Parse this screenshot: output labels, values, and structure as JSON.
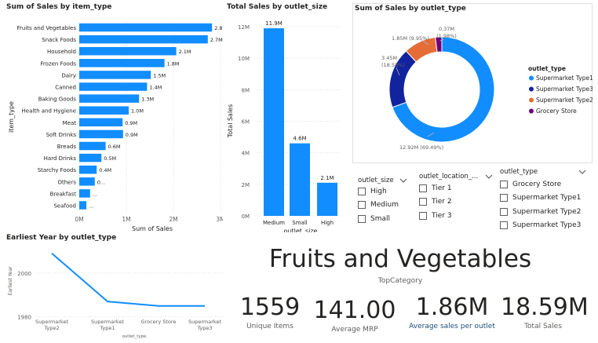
{
  "colors": {
    "bar": "#118dff",
    "type1": "#118dff",
    "type3": "#12239e",
    "type2": "#e66c37",
    "grocery": "#6b007b",
    "axis_text": "#605e5c",
    "grid": "#e1dfdd"
  },
  "item_chart": {
    "title": "Sum of Sales by item_type",
    "ylabel": "item_type",
    "xlabel": "Sum of Sales",
    "x_ticks": [
      "0M",
      "1M",
      "2M",
      "3M"
    ]
  },
  "outlet_size_chart": {
    "title": "Total Sales by outlet_size",
    "ylabel": "Total Sales",
    "xlabel": "outlet_size",
    "y_ticks": [
      "0M",
      "2M",
      "4M",
      "6M",
      "8M",
      "10M",
      "12M"
    ]
  },
  "donut_chart": {
    "title": "Sum of Sales by outlet_type",
    "legend_title": "outlet_type",
    "legend": [
      "Supermarket Type1",
      "Supermarket Type3",
      "Supermarket Type2",
      "Grocery Store"
    ]
  },
  "year_chart": {
    "title": "Earliest Year by outlet_type",
    "ylabel": "Earliest Year",
    "xlabel": "outlet_type",
    "y_ticks": [
      "1980",
      "2000"
    ]
  },
  "slicers": {
    "outlet_size": {
      "title": "outlet_size",
      "items": [
        "High",
        "Medium",
        "Small"
      ]
    },
    "outlet_location": {
      "title": "outlet_location_...",
      "items": [
        "Tier 1",
        "Tier 2",
        "Tier 3"
      ]
    },
    "outlet_type": {
      "title": "outlet_type",
      "items": [
        "Grocery Store",
        "Supermarket Type1",
        "Supermarket Type2",
        "Supermarket Type3"
      ]
    }
  },
  "top_category": {
    "value": "Fruits and Vegetables",
    "label": "TopCategory"
  },
  "cards": {
    "unique_items": {
      "value": "1559",
      "label": "Unique Items"
    },
    "average_mrp": {
      "value": "141.00",
      "label": "Average MRP"
    },
    "avg_sales_per_outlet": {
      "value": "1.86M",
      "label": "Average sales per outlet"
    },
    "total_sales": {
      "value": "18.59M",
      "label": "Total Sales"
    }
  },
  "chart_data": [
    {
      "type": "bar",
      "title": "Sum of Sales by item_type",
      "xlabel": "Sum of Sales",
      "ylabel": "item_type",
      "xlim": [
        0,
        3
      ],
      "categories": [
        "Fruits and Vegetables",
        "Snack Foods",
        "Household",
        "Frozen Foods",
        "Dairy",
        "Canned",
        "Baking Goods",
        "Health and Hygiene",
        "Meat",
        "Soft Drinks",
        "Breads",
        "Hard Drinks",
        "Starchy Foods",
        "Others",
        "Breakfast",
        "Seafood"
      ],
      "values": [
        2.82,
        2.73,
        2.06,
        1.81,
        1.52,
        1.44,
        1.27,
        1.05,
        0.92,
        0.93,
        0.56,
        0.47,
        0.37,
        0.33,
        0.23,
        0.15
      ],
      "labels": [
        "2.8M",
        "2.7M",
        "2.1M",
        "1.8M",
        "1.5M",
        "1.4M",
        "1.3M",
        "1.0M",
        "0.9M",
        "0.9M",
        "0.6M",
        "0.5M",
        "0.4M",
        "0...",
        "...",
        "..."
      ]
    },
    {
      "type": "bar",
      "title": "Total Sales by outlet_size",
      "xlabel": "outlet_size",
      "ylabel": "Total Sales",
      "ylim": [
        0,
        12
      ],
      "categories": [
        "Medium",
        "Small",
        "High"
      ],
      "values": [
        11.9,
        4.6,
        2.1
      ],
      "labels": [
        "11.9M",
        "4.6M",
        "2.1M"
      ]
    },
    {
      "type": "pie",
      "title": "Sum of Sales by outlet_type",
      "categories": [
        "Supermarket Type1",
        "Supermarket Type3",
        "Supermarket Type2",
        "Grocery Store"
      ],
      "values": [
        69.49,
        18.58,
        9.95,
        1.98
      ],
      "labels": [
        "12.92M (69.49%)",
        "3.45M (18.58%)",
        "1.85M (9.95%)",
        "0.37M (1.98%)"
      ]
    },
    {
      "type": "line",
      "title": "Earliest Year by outlet_type",
      "xlabel": "outlet_type",
      "ylabel": "Earliest Year",
      "ylim": [
        1977,
        2010
      ],
      "categories": [
        "Supermarket Type2",
        "Supermarket Type1",
        "Grocery Store",
        "Supermarket Type3"
      ],
      "values": [
        2009,
        1987,
        1985,
        1985
      ]
    }
  ]
}
